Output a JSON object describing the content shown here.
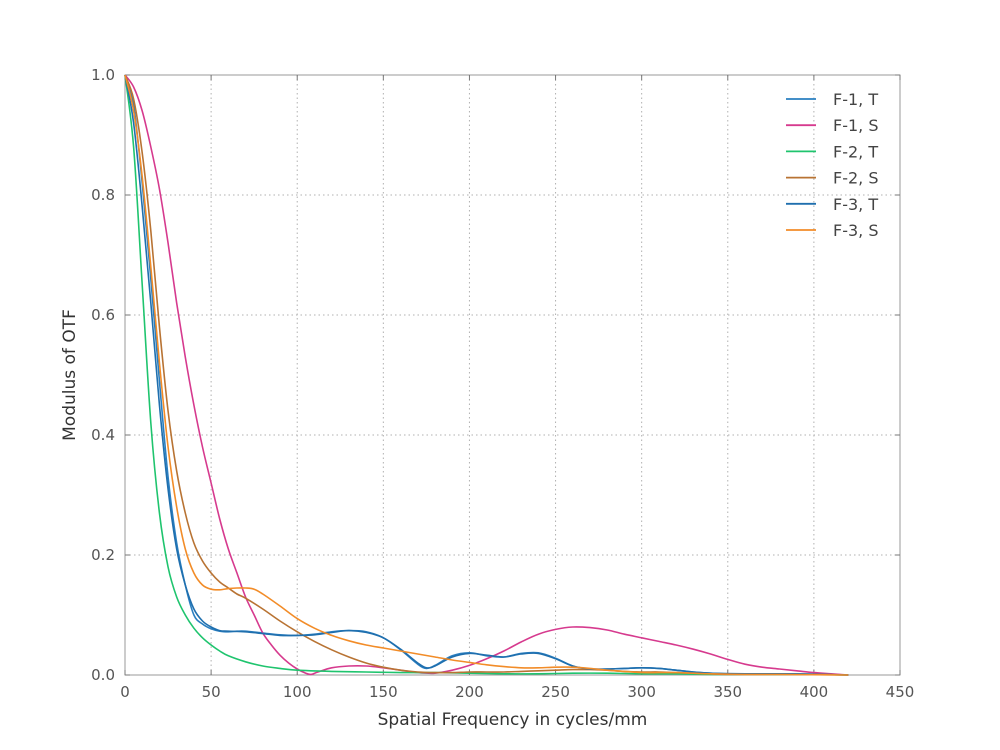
{
  "chart_data": {
    "type": "line",
    "title": "",
    "xlabel": "Spatial Frequency in cycles/mm",
    "ylabel": "Modulus of OTF",
    "xlim": [
      0,
      450
    ],
    "ylim": [
      0,
      1.0
    ],
    "x_ticks": [
      "0",
      "50",
      "100",
      "150",
      "200",
      "250",
      "300",
      "350",
      "400",
      "450"
    ],
    "y_ticks": [
      "0.0",
      "0.2",
      "0.4",
      "0.6",
      "0.8",
      "1.0"
    ],
    "grid": true,
    "legend_position": "top-right",
    "series": [
      {
        "name": "F-1, T",
        "color": "#2a7fc1",
        "points": [
          [
            0,
            1.0
          ],
          [
            5,
            0.95
          ],
          [
            10,
            0.82
          ],
          [
            15,
            0.66
          ],
          [
            20,
            0.49
          ],
          [
            25,
            0.33
          ],
          [
            30,
            0.22
          ],
          [
            35,
            0.15
          ],
          [
            40,
            0.1
          ],
          [
            45,
            0.085
          ],
          [
            50,
            0.077
          ],
          [
            55,
            0.073
          ],
          [
            60,
            0.072
          ],
          [
            65,
            0.073
          ],
          [
            70,
            0.073
          ],
          [
            80,
            0.07
          ],
          [
            90,
            0.067
          ],
          [
            100,
            0.066
          ],
          [
            110,
            0.068
          ],
          [
            120,
            0.072
          ],
          [
            130,
            0.074
          ],
          [
            140,
            0.072
          ],
          [
            150,
            0.062
          ],
          [
            160,
            0.042
          ],
          [
            170,
            0.018
          ],
          [
            175,
            0.011
          ],
          [
            180,
            0.016
          ],
          [
            190,
            0.032
          ],
          [
            200,
            0.037
          ],
          [
            210,
            0.032
          ],
          [
            220,
            0.03
          ],
          [
            230,
            0.036
          ],
          [
            240,
            0.037
          ],
          [
            250,
            0.028
          ],
          [
            260,
            0.015
          ],
          [
            270,
            0.01
          ],
          [
            280,
            0.01
          ],
          [
            290,
            0.011
          ],
          [
            300,
            0.012
          ],
          [
            310,
            0.011
          ],
          [
            320,
            0.008
          ],
          [
            330,
            0.005
          ],
          [
            340,
            0.003
          ],
          [
            350,
            0.002
          ],
          [
            370,
            0.002
          ],
          [
            390,
            0.002
          ],
          [
            410,
            0.001
          ],
          [
            420,
            0.0
          ]
        ]
      },
      {
        "name": "F-1, S",
        "color": "#d63a8e",
        "points": [
          [
            0,
            1.0
          ],
          [
            5,
            0.98
          ],
          [
            10,
            0.94
          ],
          [
            15,
            0.88
          ],
          [
            20,
            0.81
          ],
          [
            25,
            0.72
          ],
          [
            30,
            0.62
          ],
          [
            35,
            0.53
          ],
          [
            40,
            0.45
          ],
          [
            45,
            0.38
          ],
          [
            50,
            0.32
          ],
          [
            55,
            0.26
          ],
          [
            60,
            0.21
          ],
          [
            65,
            0.17
          ],
          [
            70,
            0.13
          ],
          [
            75,
            0.1
          ],
          [
            80,
            0.07
          ],
          [
            85,
            0.05
          ],
          [
            90,
            0.033
          ],
          [
            95,
            0.02
          ],
          [
            100,
            0.01
          ],
          [
            105,
            0.003
          ],
          [
            108,
            0.001
          ],
          [
            112,
            0.005
          ],
          [
            120,
            0.012
          ],
          [
            130,
            0.015
          ],
          [
            140,
            0.015
          ],
          [
            150,
            0.012
          ],
          [
            160,
            0.008
          ],
          [
            170,
            0.004
          ],
          [
            180,
            0.003
          ],
          [
            190,
            0.008
          ],
          [
            200,
            0.016
          ],
          [
            210,
            0.027
          ],
          [
            220,
            0.04
          ],
          [
            230,
            0.055
          ],
          [
            240,
            0.068
          ],
          [
            250,
            0.076
          ],
          [
            260,
            0.08
          ],
          [
            270,
            0.079
          ],
          [
            280,
            0.075
          ],
          [
            290,
            0.068
          ],
          [
            300,
            0.062
          ],
          [
            310,
            0.056
          ],
          [
            320,
            0.05
          ],
          [
            330,
            0.043
          ],
          [
            340,
            0.035
          ],
          [
            350,
            0.026
          ],
          [
            360,
            0.018
          ],
          [
            370,
            0.013
          ],
          [
            380,
            0.01
          ],
          [
            390,
            0.007
          ],
          [
            400,
            0.004
          ],
          [
            410,
            0.002
          ],
          [
            420,
            0.0
          ]
        ]
      },
      {
        "name": "F-2, T",
        "color": "#1fc46e",
        "points": [
          [
            0,
            1.0
          ],
          [
            5,
            0.88
          ],
          [
            10,
            0.65
          ],
          [
            15,
            0.42
          ],
          [
            20,
            0.27
          ],
          [
            25,
            0.18
          ],
          [
            30,
            0.13
          ],
          [
            35,
            0.1
          ],
          [
            40,
            0.078
          ],
          [
            45,
            0.062
          ],
          [
            50,
            0.05
          ],
          [
            55,
            0.04
          ],
          [
            60,
            0.032
          ],
          [
            70,
            0.022
          ],
          [
            80,
            0.015
          ],
          [
            90,
            0.011
          ],
          [
            100,
            0.008
          ],
          [
            120,
            0.006
          ],
          [
            140,
            0.005
          ],
          [
            160,
            0.004
          ],
          [
            180,
            0.004
          ],
          [
            200,
            0.003
          ],
          [
            220,
            0.002
          ],
          [
            240,
            0.002
          ],
          [
            260,
            0.003
          ],
          [
            280,
            0.003
          ],
          [
            300,
            0.002
          ],
          [
            320,
            0.002
          ],
          [
            340,
            0.001
          ],
          [
            360,
            0.001
          ],
          [
            380,
            0.001
          ],
          [
            400,
            0.001
          ],
          [
            420,
            0.0
          ]
        ]
      },
      {
        "name": "F-2, S",
        "color": "#b87333",
        "points": [
          [
            0,
            1.0
          ],
          [
            5,
            0.96
          ],
          [
            10,
            0.87
          ],
          [
            15,
            0.74
          ],
          [
            20,
            0.58
          ],
          [
            25,
            0.44
          ],
          [
            30,
            0.34
          ],
          [
            35,
            0.27
          ],
          [
            40,
            0.22
          ],
          [
            45,
            0.19
          ],
          [
            50,
            0.17
          ],
          [
            55,
            0.155
          ],
          [
            60,
            0.145
          ],
          [
            65,
            0.135
          ],
          [
            70,
            0.128
          ],
          [
            80,
            0.11
          ],
          [
            90,
            0.09
          ],
          [
            100,
            0.072
          ],
          [
            110,
            0.056
          ],
          [
            120,
            0.042
          ],
          [
            130,
            0.03
          ],
          [
            140,
            0.02
          ],
          [
            150,
            0.013
          ],
          [
            160,
            0.008
          ],
          [
            170,
            0.005
          ],
          [
            180,
            0.004
          ],
          [
            190,
            0.004
          ],
          [
            200,
            0.005
          ],
          [
            210,
            0.005
          ],
          [
            220,
            0.005
          ],
          [
            230,
            0.006
          ],
          [
            240,
            0.007
          ],
          [
            250,
            0.008
          ],
          [
            260,
            0.009
          ],
          [
            270,
            0.009
          ],
          [
            280,
            0.008
          ],
          [
            290,
            0.006
          ],
          [
            300,
            0.005
          ],
          [
            310,
            0.005
          ],
          [
            320,
            0.004
          ],
          [
            330,
            0.003
          ],
          [
            340,
            0.002
          ],
          [
            350,
            0.001
          ],
          [
            370,
            0.001
          ],
          [
            390,
            0.001
          ],
          [
            420,
            0.0
          ]
        ]
      },
      {
        "name": "F-3, T",
        "color": "#1f6fae",
        "points": [
          [
            0,
            1.0
          ],
          [
            5,
            0.92
          ],
          [
            10,
            0.78
          ],
          [
            15,
            0.62
          ],
          [
            20,
            0.45
          ],
          [
            25,
            0.31
          ],
          [
            30,
            0.21
          ],
          [
            35,
            0.15
          ],
          [
            40,
            0.11
          ],
          [
            45,
            0.09
          ],
          [
            50,
            0.08
          ],
          [
            55,
            0.074
          ],
          [
            60,
            0.073
          ],
          [
            70,
            0.072
          ],
          [
            80,
            0.069
          ],
          [
            90,
            0.066
          ],
          [
            100,
            0.066
          ],
          [
            110,
            0.067
          ],
          [
            120,
            0.071
          ],
          [
            130,
            0.074
          ],
          [
            140,
            0.071
          ],
          [
            150,
            0.062
          ],
          [
            160,
            0.043
          ],
          [
            170,
            0.02
          ],
          [
            175,
            0.012
          ],
          [
            180,
            0.015
          ],
          [
            190,
            0.03
          ],
          [
            200,
            0.036
          ],
          [
            210,
            0.033
          ],
          [
            220,
            0.03
          ],
          [
            230,
            0.035
          ],
          [
            240,
            0.036
          ],
          [
            250,
            0.027
          ],
          [
            260,
            0.015
          ],
          [
            270,
            0.01
          ],
          [
            280,
            0.01
          ],
          [
            290,
            0.011
          ],
          [
            300,
            0.012
          ],
          [
            310,
            0.011
          ],
          [
            320,
            0.008
          ],
          [
            330,
            0.005
          ],
          [
            340,
            0.003
          ],
          [
            360,
            0.002
          ],
          [
            380,
            0.002
          ],
          [
            400,
            0.001
          ],
          [
            420,
            0.0
          ]
        ]
      },
      {
        "name": "F-3, S",
        "color": "#f28c28",
        "points": [
          [
            0,
            1.0
          ],
          [
            5,
            0.94
          ],
          [
            10,
            0.83
          ],
          [
            15,
            0.68
          ],
          [
            20,
            0.52
          ],
          [
            25,
            0.38
          ],
          [
            30,
            0.28
          ],
          [
            35,
            0.21
          ],
          [
            40,
            0.17
          ],
          [
            45,
            0.15
          ],
          [
            50,
            0.143
          ],
          [
            55,
            0.142
          ],
          [
            60,
            0.144
          ],
          [
            65,
            0.145
          ],
          [
            70,
            0.145
          ],
          [
            75,
            0.143
          ],
          [
            80,
            0.135
          ],
          [
            90,
            0.115
          ],
          [
            100,
            0.094
          ],
          [
            110,
            0.078
          ],
          [
            120,
            0.066
          ],
          [
            130,
            0.057
          ],
          [
            140,
            0.05
          ],
          [
            150,
            0.045
          ],
          [
            160,
            0.04
          ],
          [
            170,
            0.035
          ],
          [
            180,
            0.03
          ],
          [
            190,
            0.025
          ],
          [
            200,
            0.021
          ],
          [
            210,
            0.017
          ],
          [
            220,
            0.014
          ],
          [
            230,
            0.012
          ],
          [
            240,
            0.012
          ],
          [
            250,
            0.013
          ],
          [
            260,
            0.013
          ],
          [
            270,
            0.011
          ],
          [
            280,
            0.008
          ],
          [
            290,
            0.006
          ],
          [
            300,
            0.004
          ],
          [
            310,
            0.004
          ],
          [
            320,
            0.004
          ],
          [
            330,
            0.003
          ],
          [
            340,
            0.002
          ],
          [
            360,
            0.001
          ],
          [
            380,
            0.001
          ],
          [
            420,
            0.0
          ]
        ]
      }
    ]
  }
}
